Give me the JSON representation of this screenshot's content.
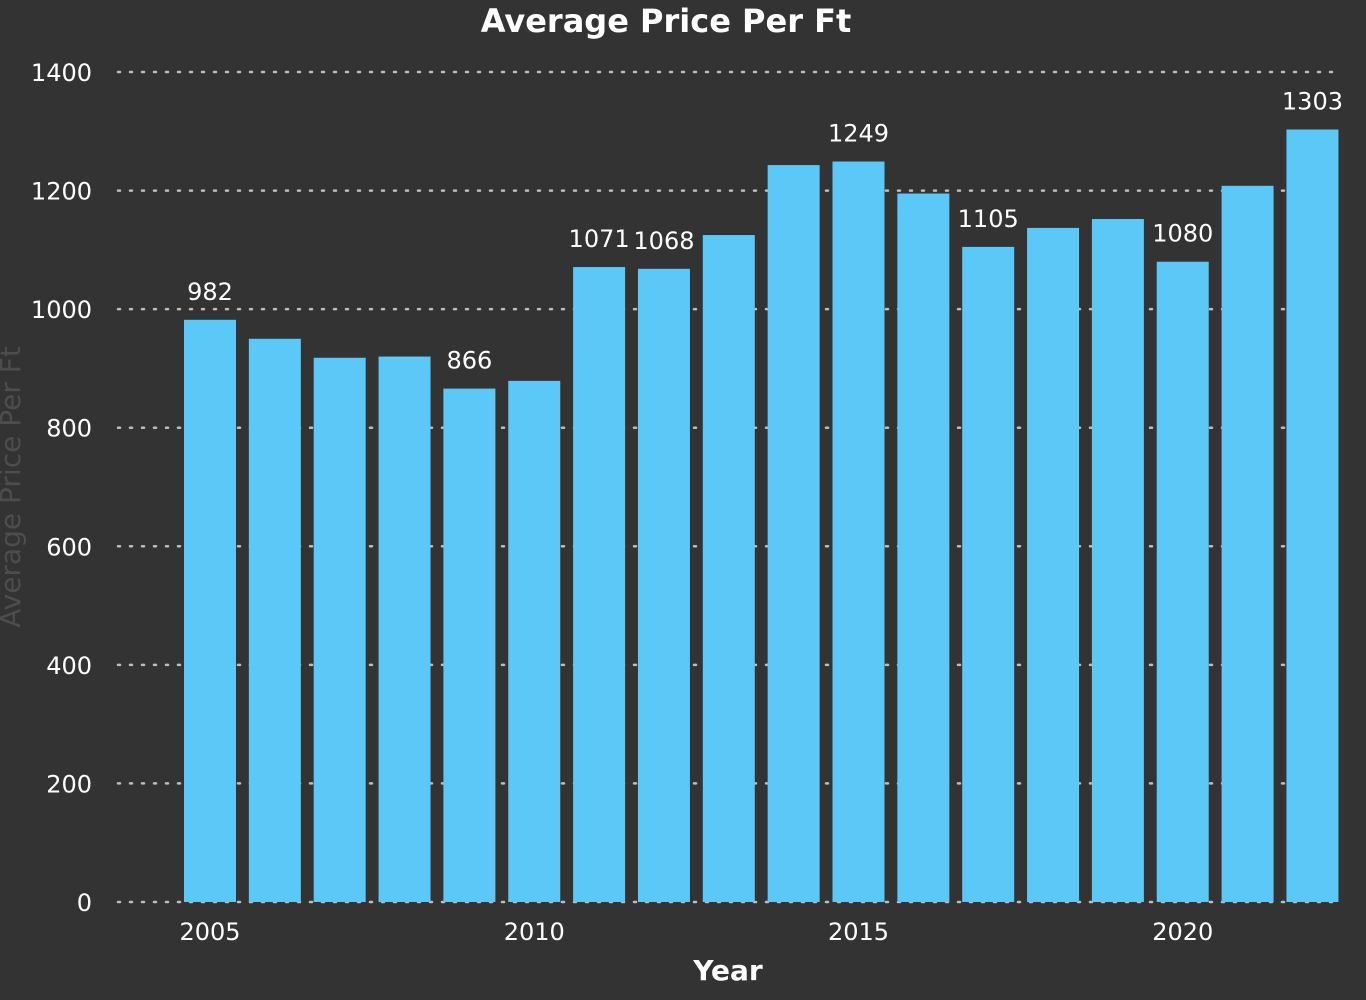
{
  "chart_data": {
    "type": "bar",
    "title": "Average Price Per Ft",
    "xlabel": "Year",
    "ylabel": "Average Price Per Ft",
    "categories": [
      2005,
      2006,
      2007,
      2008,
      2009,
      2010,
      2011,
      2012,
      2013,
      2014,
      2015,
      2016,
      2017,
      2018,
      2019,
      2020,
      2021,
      2022
    ],
    "values": [
      982,
      950,
      918,
      920,
      866,
      879,
      1071,
      1068,
      1125,
      1243,
      1249,
      1195,
      1105,
      1137,
      1152,
      1080,
      1208,
      1303
    ],
    "data_labels": {
      "2005": "982",
      "2009": "866",
      "2011": "1071",
      "2012": "1068",
      "2015": "1249",
      "2017": "1105",
      "2020": "1080",
      "2022": "1303"
    },
    "x_ticks": [
      "2005",
      "2010",
      "2015",
      "2020"
    ],
    "y_ticks": [
      0,
      200,
      400,
      600,
      800,
      1000,
      1200,
      1400
    ],
    "ylim": [
      0,
      1400
    ],
    "grid": true,
    "legend": "none",
    "colors": {
      "background": "#333333",
      "bar": "#5BC8F8",
      "text": "#FFFFFF",
      "ylabel": "#4D4D4D",
      "grid": "#BDBDBD"
    }
  }
}
